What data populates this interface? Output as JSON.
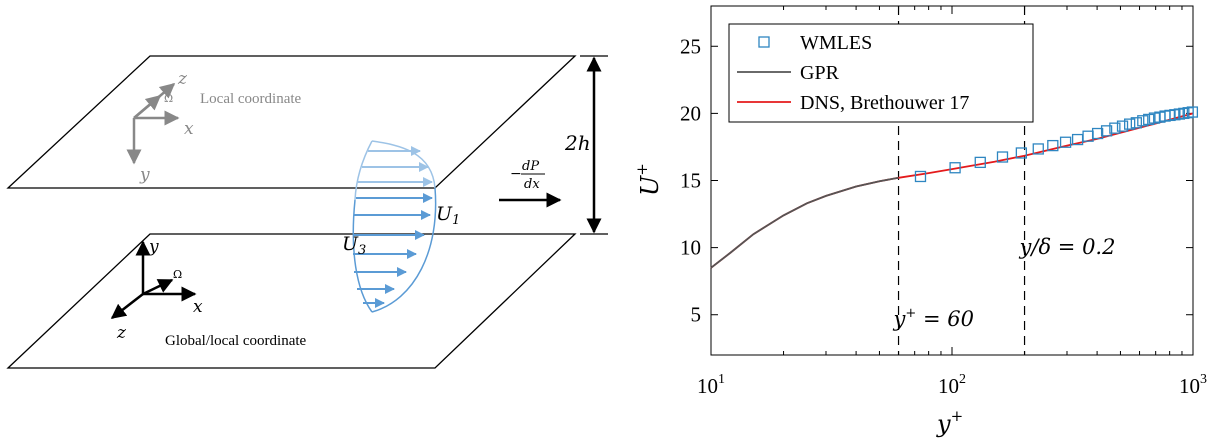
{
  "diagram": {
    "local_label": "Local coordinate",
    "global_label": "Global/local coordinate",
    "axis_x": "x",
    "axis_y": "y",
    "axis_z": "z",
    "omega": "Ω",
    "height_label": "2h",
    "u1_label": "U",
    "u1_sub": "1",
    "u3_label": "U",
    "u3_sub": "3",
    "pressure_minus": "−",
    "pressure_num": "dP",
    "pressure_den": "dx",
    "colors": {
      "plate": "#000000",
      "local_axes": "#888888",
      "profile": "#5b9bd5",
      "profile_light": "#9dc3e6"
    }
  },
  "chart_data": {
    "type": "line",
    "xscale": "log",
    "xlim": [
      10,
      1000
    ],
    "ylim": [
      2,
      28
    ],
    "xticks": [
      10,
      100,
      1000
    ],
    "xtick_labels": [
      {
        "base": "10",
        "exp": "1"
      },
      {
        "base": "10",
        "exp": "2"
      },
      {
        "base": "10",
        "exp": "3"
      }
    ],
    "yticks": [
      5,
      10,
      15,
      20,
      25
    ],
    "ytick_labels": [
      "5",
      "10",
      "15",
      "20",
      "25"
    ],
    "xlabel": "y",
    "xlabel_sup": "+",
    "ylabel": "U",
    "ylabel_sup": "+",
    "grid": false,
    "legend_position": "top-left",
    "series": [
      {
        "name": "WMLES",
        "style": "square-markers",
        "color": "#2e86c1",
        "x": [
          74,
          103,
          131,
          162,
          194,
          228,
          262,
          296,
          332,
          367,
          402,
          438,
          474,
          510,
          546,
          582,
          619,
          655,
          692,
          729,
          766,
          803,
          841,
          878,
          916,
          955,
          994
        ],
        "y": [
          15.3,
          15.95,
          16.35,
          16.75,
          17.05,
          17.35,
          17.6,
          17.85,
          18.05,
          18.3,
          18.5,
          18.7,
          18.9,
          19.05,
          19.2,
          19.3,
          19.45,
          19.55,
          19.65,
          19.72,
          19.8,
          19.85,
          19.9,
          19.95,
          20.0,
          20.05,
          20.1
        ]
      },
      {
        "name": "GPR",
        "style": "line",
        "color": "#555555",
        "x": [
          10,
          12,
          15,
          20,
          25,
          30,
          40,
          50,
          60
        ],
        "y": [
          8.5,
          9.6,
          11.0,
          12.4,
          13.3,
          13.85,
          14.55,
          14.95,
          15.2
        ]
      },
      {
        "name": "DNS, Brethouwer 17",
        "style": "line",
        "color": "#e41a1c",
        "x": [
          10,
          12,
          15,
          20,
          25,
          30,
          40,
          50,
          60,
          80,
          100,
          150,
          200,
          300,
          400,
          500,
          700,
          1000
        ],
        "y": [
          8.5,
          9.6,
          11.0,
          12.4,
          13.3,
          13.85,
          14.55,
          14.95,
          15.2,
          15.55,
          15.85,
          16.4,
          16.85,
          17.6,
          18.1,
          18.55,
          19.25,
          20.0
        ]
      }
    ],
    "vlines": [
      {
        "x": 60,
        "style": "dashed",
        "label": "y",
        "label_sup": "+",
        "label_rest": " = 60"
      },
      {
        "x": 200,
        "style": "dashed",
        "label": "y/δ = 0.2"
      }
    ]
  }
}
